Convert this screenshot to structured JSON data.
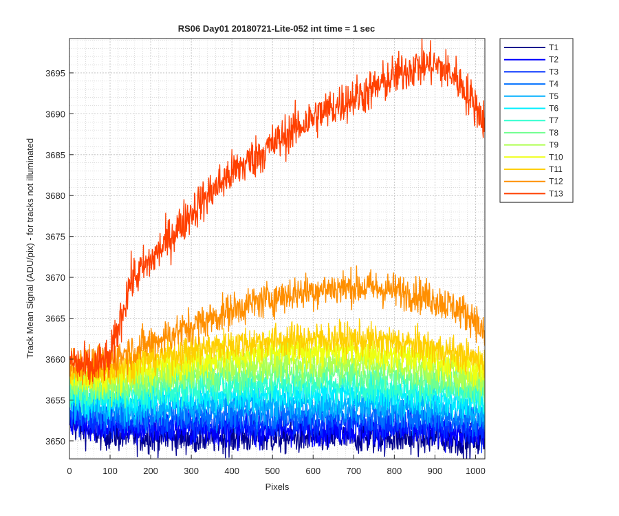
{
  "chart_data": {
    "type": "line",
    "title": "RS06 Day01 20180721-Lite-052 int time = 1 sec",
    "xlabel": "Pixels",
    "ylabel": "Track Mean Signal (ADU/pix) - for tracks not illuminated",
    "xlim": [
      0,
      1023
    ],
    "ylim": [
      3647.8,
      3699.2
    ],
    "xticks": [
      0,
      100,
      200,
      300,
      400,
      500,
      600,
      700,
      800,
      900,
      1000
    ],
    "yticks": [
      3650,
      3655,
      3660,
      3665,
      3670,
      3675,
      3680,
      3685,
      3690,
      3695
    ],
    "grid": "major and minor",
    "legend": "outside top-right",
    "x": [
      0,
      50,
      100,
      150,
      200,
      250,
      300,
      350,
      400,
      450,
      500,
      550,
      600,
      650,
      700,
      750,
      800,
      850,
      900,
      950,
      1000,
      1023
    ],
    "series": [
      {
        "name": "T1",
        "color": "#00008f",
        "noise": 1.0,
        "values": [
          3652.0,
          3651.2,
          3650.8,
          3650.6,
          3650.5,
          3650.5,
          3650.4,
          3650.4,
          3650.4,
          3650.4,
          3650.4,
          3650.4,
          3650.4,
          3650.4,
          3650.4,
          3650.4,
          3650.4,
          3650.4,
          3650.3,
          3650.2,
          3650.0,
          3650.0
        ]
      },
      {
        "name": "T2",
        "color": "#0000ff",
        "noise": 1.0,
        "values": [
          3652.8,
          3652.0,
          3651.6,
          3651.5,
          3651.4,
          3651.4,
          3651.4,
          3651.4,
          3651.4,
          3651.4,
          3651.4,
          3651.4,
          3651.4,
          3651.4,
          3651.4,
          3651.4,
          3651.4,
          3651.3,
          3651.2,
          3651.0,
          3650.8,
          3650.7
        ]
      },
      {
        "name": "T3",
        "color": "#0030ff",
        "noise": 1.0,
        "values": [
          3653.5,
          3652.8,
          3652.4,
          3652.3,
          3652.3,
          3652.3,
          3652.3,
          3652.3,
          3652.3,
          3652.3,
          3652.3,
          3652.3,
          3652.3,
          3652.3,
          3652.3,
          3652.3,
          3652.3,
          3652.2,
          3652.1,
          3651.9,
          3651.6,
          3651.5
        ]
      },
      {
        "name": "T4",
        "color": "#0070ff",
        "noise": 1.0,
        "values": [
          3654.2,
          3653.6,
          3653.2,
          3653.2,
          3653.2,
          3653.3,
          3653.3,
          3653.3,
          3653.3,
          3653.3,
          3653.3,
          3653.3,
          3653.3,
          3653.3,
          3653.3,
          3653.3,
          3653.3,
          3653.2,
          3653.1,
          3652.9,
          3652.6,
          3652.4
        ]
      },
      {
        "name": "T5",
        "color": "#00afff",
        "noise": 1.0,
        "values": [
          3655.0,
          3654.4,
          3654.1,
          3654.1,
          3654.2,
          3654.3,
          3654.4,
          3654.4,
          3654.5,
          3654.5,
          3654.5,
          3654.5,
          3654.5,
          3654.5,
          3654.5,
          3654.5,
          3654.4,
          3654.3,
          3654.2,
          3654.0,
          3653.6,
          3653.4
        ]
      },
      {
        "name": "T6",
        "color": "#00efff",
        "noise": 1.0,
        "values": [
          3655.7,
          3655.1,
          3654.9,
          3655.0,
          3655.2,
          3655.4,
          3655.5,
          3655.6,
          3655.7,
          3655.7,
          3655.8,
          3655.8,
          3655.8,
          3655.8,
          3655.8,
          3655.7,
          3655.6,
          3655.5,
          3655.3,
          3655.0,
          3654.6,
          3654.4
        ]
      },
      {
        "name": "T7",
        "color": "#30ffcf",
        "noise": 1.0,
        "values": [
          3656.3,
          3655.8,
          3655.7,
          3655.9,
          3656.2,
          3656.4,
          3656.6,
          3656.8,
          3656.9,
          3657.0,
          3657.0,
          3657.1,
          3657.1,
          3657.1,
          3657.0,
          3656.9,
          3656.8,
          3656.6,
          3656.4,
          3656.0,
          3655.6,
          3655.3
        ]
      },
      {
        "name": "T8",
        "color": "#70ff8f",
        "noise": 1.0,
        "values": [
          3656.9,
          3656.4,
          3656.4,
          3656.8,
          3657.1,
          3657.4,
          3657.7,
          3657.9,
          3658.0,
          3658.2,
          3658.3,
          3658.3,
          3658.3,
          3658.3,
          3658.3,
          3658.2,
          3658.0,
          3657.8,
          3657.5,
          3657.1,
          3656.6,
          3656.3
        ]
      },
      {
        "name": "T9",
        "color": "#afff50",
        "noise": 1.0,
        "values": [
          3657.5,
          3657.0,
          3657.1,
          3657.6,
          3658.0,
          3658.4,
          3658.7,
          3659.0,
          3659.2,
          3659.4,
          3659.5,
          3659.6,
          3659.6,
          3659.6,
          3659.6,
          3659.5,
          3659.3,
          3659.0,
          3658.7,
          3658.2,
          3657.7,
          3657.3
        ]
      },
      {
        "name": "T10",
        "color": "#efff10",
        "noise": 1.0,
        "values": [
          3658.1,
          3657.6,
          3657.9,
          3658.5,
          3659.0,
          3659.4,
          3659.8,
          3660.1,
          3660.4,
          3660.6,
          3660.8,
          3660.9,
          3661.0,
          3661.0,
          3661.0,
          3660.8,
          3660.6,
          3660.3,
          3659.9,
          3659.4,
          3658.8,
          3658.4
        ]
      },
      {
        "name": "T11",
        "color": "#ffcf00",
        "noise": 1.0,
        "values": [
          3658.8,
          3658.3,
          3658.7,
          3659.5,
          3660.1,
          3660.6,
          3661.1,
          3661.5,
          3661.8,
          3662.1,
          3662.3,
          3662.4,
          3662.5,
          3662.5,
          3662.5,
          3662.3,
          3662.1,
          3661.8,
          3661.3,
          3660.7,
          3660.0,
          3659.5
        ]
      },
      {
        "name": "T12",
        "color": "#ff8f00",
        "noise": 1.1,
        "values": [
          3659.8,
          3659.2,
          3659.9,
          3661.0,
          3662.0,
          3663.0,
          3664.0,
          3665.0,
          3666.0,
          3666.8,
          3667.5,
          3668.0,
          3668.4,
          3668.7,
          3668.8,
          3668.7,
          3668.4,
          3668.0,
          3667.3,
          3666.3,
          3664.9,
          3662.5
        ]
      },
      {
        "name": "T13",
        "color": "#ff4000",
        "noise": 1.3,
        "values": [
          3659.8,
          3658.8,
          3660.0,
          3669.5,
          3672.0,
          3675.0,
          3678.0,
          3680.5,
          3682.8,
          3684.5,
          3686.2,
          3688.0,
          3689.5,
          3690.8,
          3692.0,
          3693.0,
          3694.6,
          3695.8,
          3696.0,
          3694.6,
          3691.0,
          3689.0
        ]
      }
    ]
  }
}
